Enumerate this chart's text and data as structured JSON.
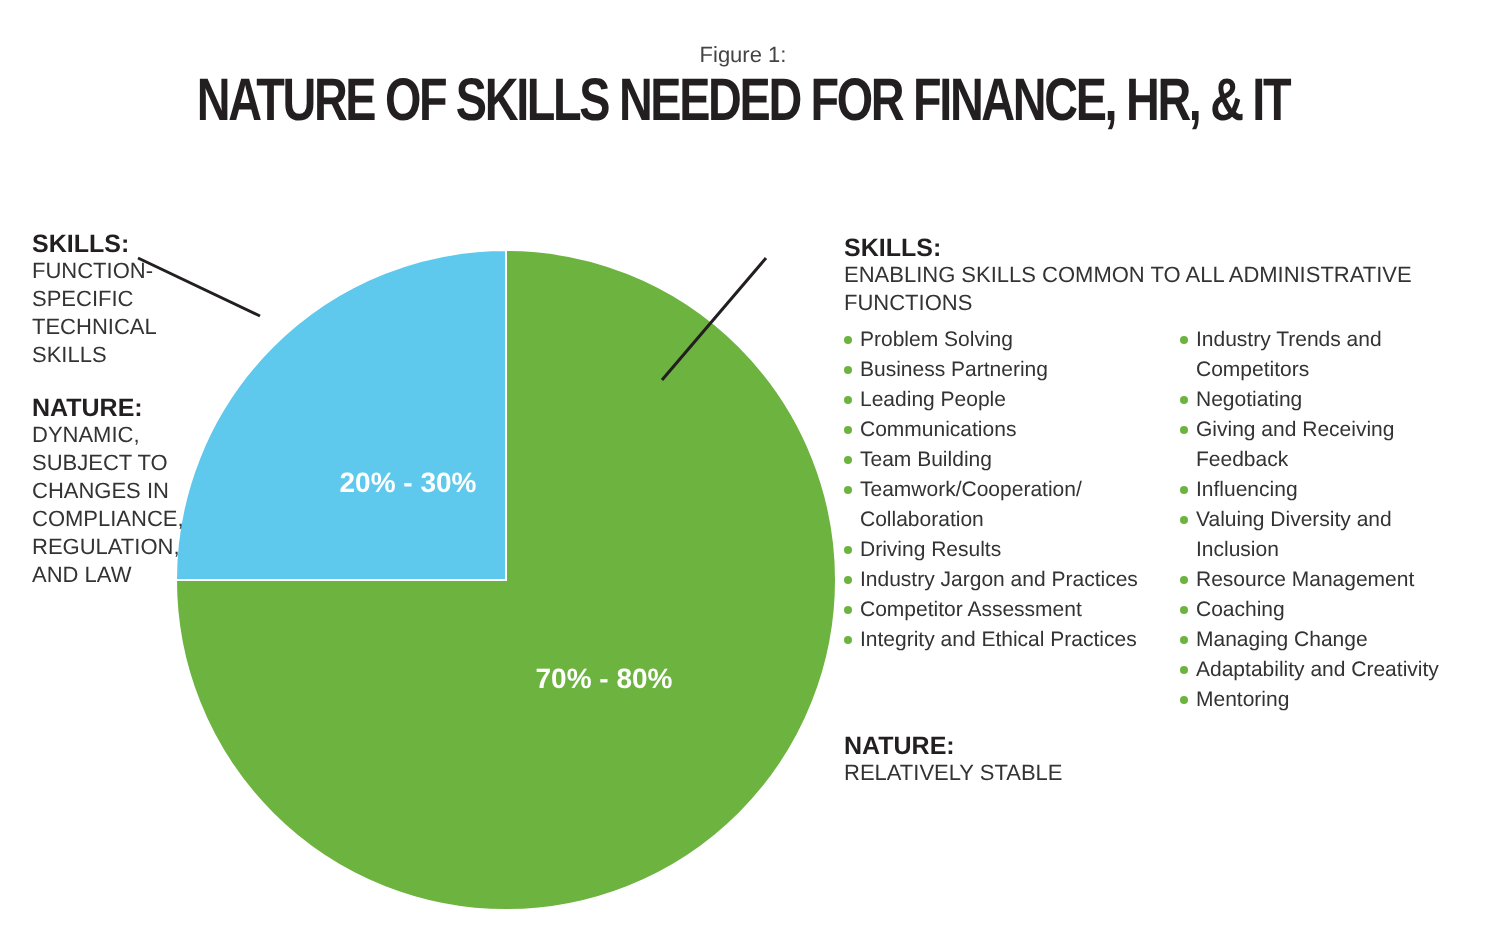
{
  "chart_data": {
    "type": "pie",
    "subtitle": "Figure 1:",
    "title": "NATURE OF SKILLS NEEDED FOR FINANCE, HR, & IT",
    "categories": [
      "20% - 30%",
      "70% - 80%"
    ],
    "values": [
      25,
      75
    ],
    "colors": [
      "#5ec9ec",
      "#6cb33f"
    ],
    "legend": false,
    "annotations": [
      "SKILLS:",
      "FUNCTION-SPECIFIC TECHNICAL SKILLS",
      "NATURE:",
      "DYNAMIC, SUBJECT TO CHANGES IN COMPLIANCE, REGULATION, AND LAW",
      "SKILLS:",
      "ENABLING SKILLS COMMON TO ALL ADMINISTRATIVE FUNCTIONS",
      "Problem Solving",
      "Business Partnering",
      "Leading People",
      "Communications",
      "Team Building",
      "Teamwork/Cooperation/ Collaboration",
      "Driving Results",
      "Industry Jargon and Practices",
      "Competitor Assessment",
      "Integrity and Ethical Practices",
      "Industry Trends and Competitors",
      "Negotiating",
      "Giving and Receiving Feedback",
      "Influencing",
      "Valuing Diversity and Inclusion",
      "Resource Management",
      "Coaching",
      "Managing Change",
      "Adaptability and Creativity",
      "Mentoring",
      "NATURE:",
      "RELATIVELY STABLE"
    ]
  }
}
